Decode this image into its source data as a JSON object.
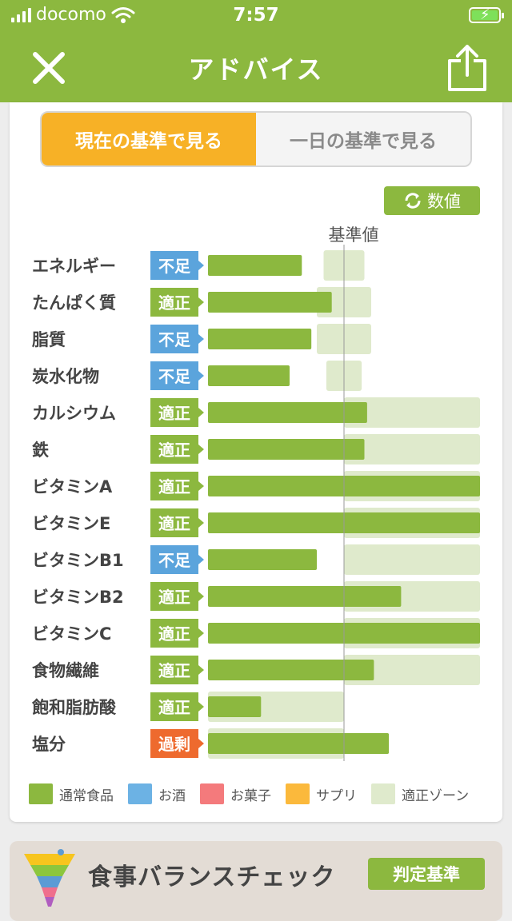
{
  "status_bar": {
    "carrier": "docomo",
    "time": "7:57"
  },
  "nav": {
    "title": "アドバイス",
    "close_icon": "close-icon",
    "share_icon": "share-icon"
  },
  "tabs": [
    {
      "label": "現在の基準で見る",
      "active": true
    },
    {
      "label": "一日の基準で見る",
      "active": false
    }
  ],
  "value_toggle": {
    "label": "数値",
    "icon": "refresh-icon"
  },
  "standard_label": "基準値",
  "colors": {
    "brand": "#8cb83f",
    "bar_normal": "#8cb83f",
    "zone": "#dfeacc",
    "status_shortage": "#5ba4dc",
    "status_ok": "#8cb83f",
    "status_excess": "#ee6a2e",
    "tab_active": "#f7b126"
  },
  "chart_data": {
    "type": "bar",
    "orientation": "horizontal",
    "categories": [
      "エネルギー",
      "たんぱく質",
      "脂質",
      "炭水化物",
      "カルシウム",
      "鉄",
      "ビタミンA",
      "ビタミンE",
      "ビタミンB1",
      "ビタミンB2",
      "ビタミンC",
      "食物繊維",
      "飽和脂肪酸",
      "塩分"
    ],
    "status": [
      "不足",
      "適正",
      "不足",
      "不足",
      "適正",
      "適正",
      "適正",
      "適正",
      "不足",
      "適正",
      "適正",
      "適正",
      "適正",
      "過剰"
    ],
    "series": [
      {
        "name": "通常食品",
        "values": [
          0.69,
          0.91,
          0.76,
          0.6,
          1.17,
          1.15,
          2.0,
          2.0,
          0.8,
          1.42,
          2.0,
          1.22,
          0.39,
          1.33
        ]
      }
    ],
    "zones": [
      [
        0.85,
        1.15
      ],
      [
        0.8,
        1.2
      ],
      [
        0.8,
        1.2
      ],
      [
        0.87,
        1.13
      ],
      [
        1.0,
        2.0
      ],
      [
        1.0,
        2.0
      ],
      [
        1.0,
        2.0
      ],
      [
        1.0,
        2.0
      ],
      [
        1.0,
        2.0
      ],
      [
        1.0,
        2.0
      ],
      [
        1.0,
        2.0
      ],
      [
        1.0,
        2.0
      ],
      [
        0.0,
        1.0
      ],
      [
        0.0,
        1.0
      ]
    ],
    "reference_line": 1.0,
    "reference_label": "基準値",
    "xlim": [
      0,
      2.0
    ],
    "legend": [
      "通常食品",
      "お酒",
      "お菓子",
      "サプリ",
      "適正ゾーン"
    ],
    "legend_position": "bottom"
  },
  "legend": [
    {
      "label": "通常食品",
      "color": "#8cb83f"
    },
    {
      "label": "お酒",
      "color": "#6cb2e4"
    },
    {
      "label": "お菓子",
      "color": "#f47a7c"
    },
    {
      "label": "サプリ",
      "color": "#fbb93c"
    },
    {
      "label": "適正ゾーン",
      "color": "#dfeacc"
    }
  ],
  "balance_check": {
    "title": "食事バランスチェック",
    "button_label": "判定基準",
    "icon": "food-balance-funnel-icon"
  }
}
